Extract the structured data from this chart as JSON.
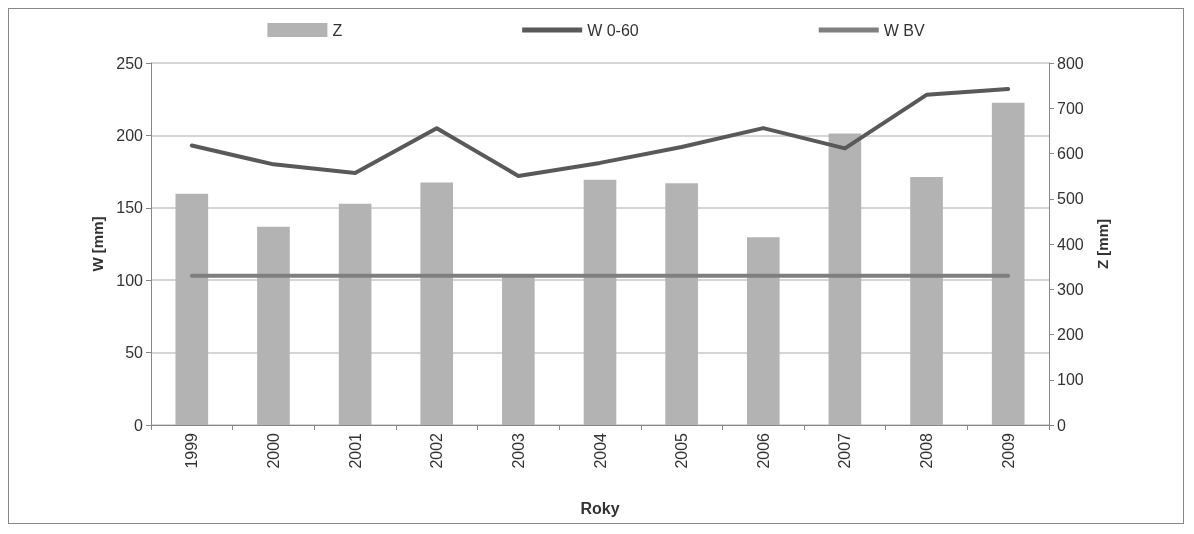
{
  "chart_data": {
    "type": "bar",
    "xlabel": "Roky",
    "ylabel": "W [mm]",
    "y2label": "Z [mm]",
    "categories": [
      "1999",
      "2000",
      "2001",
      "2002",
      "2003",
      "2004",
      "2005",
      "2006",
      "2007",
      "2008",
      "2009"
    ],
    "series": [
      {
        "name": "Z",
        "axis": "y2",
        "color": "#b3b3b3",
        "values": [
          511,
          438,
          489,
          536,
          329,
          542,
          534,
          415,
          644,
          548,
          712
        ]
      },
      {
        "name": "W 0-60",
        "type": "line",
        "color": "#595959",
        "values": [
          193,
          180,
          174,
          205,
          172,
          181,
          192,
          205,
          191,
          228,
          232
        ]
      },
      {
        "name": "W BV",
        "type": "line",
        "color": "#7f7f7f",
        "values": [
          103,
          103,
          103,
          103,
          103,
          103,
          103,
          103,
          103,
          103,
          103
        ]
      }
    ],
    "ylim": [
      0,
      250
    ],
    "yticks": [
      0,
      50,
      100,
      150,
      200,
      250
    ],
    "y2lim": [
      0,
      800
    ],
    "y2ticks": [
      0,
      100,
      200,
      300,
      400,
      500,
      600,
      700,
      800
    ],
    "grid": "y",
    "legend": "top",
    "marker": "none"
  }
}
